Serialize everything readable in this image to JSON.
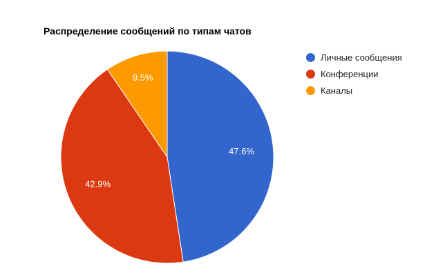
{
  "chart_data": {
    "type": "pie",
    "title": "Распределение сообщений по типам чатов",
    "legend_position": "right",
    "slices": [
      {
        "label": "Личные сообщения",
        "value": 47.6,
        "value_label": "47.6%",
        "color": "#3366cc"
      },
      {
        "label": "Конференции",
        "value": 42.9,
        "value_label": "42.9%",
        "color": "#dc3912"
      },
      {
        "label": "Каналы",
        "value": 9.5,
        "value_label": "9.5%",
        "color": "#ff9900"
      }
    ]
  }
}
